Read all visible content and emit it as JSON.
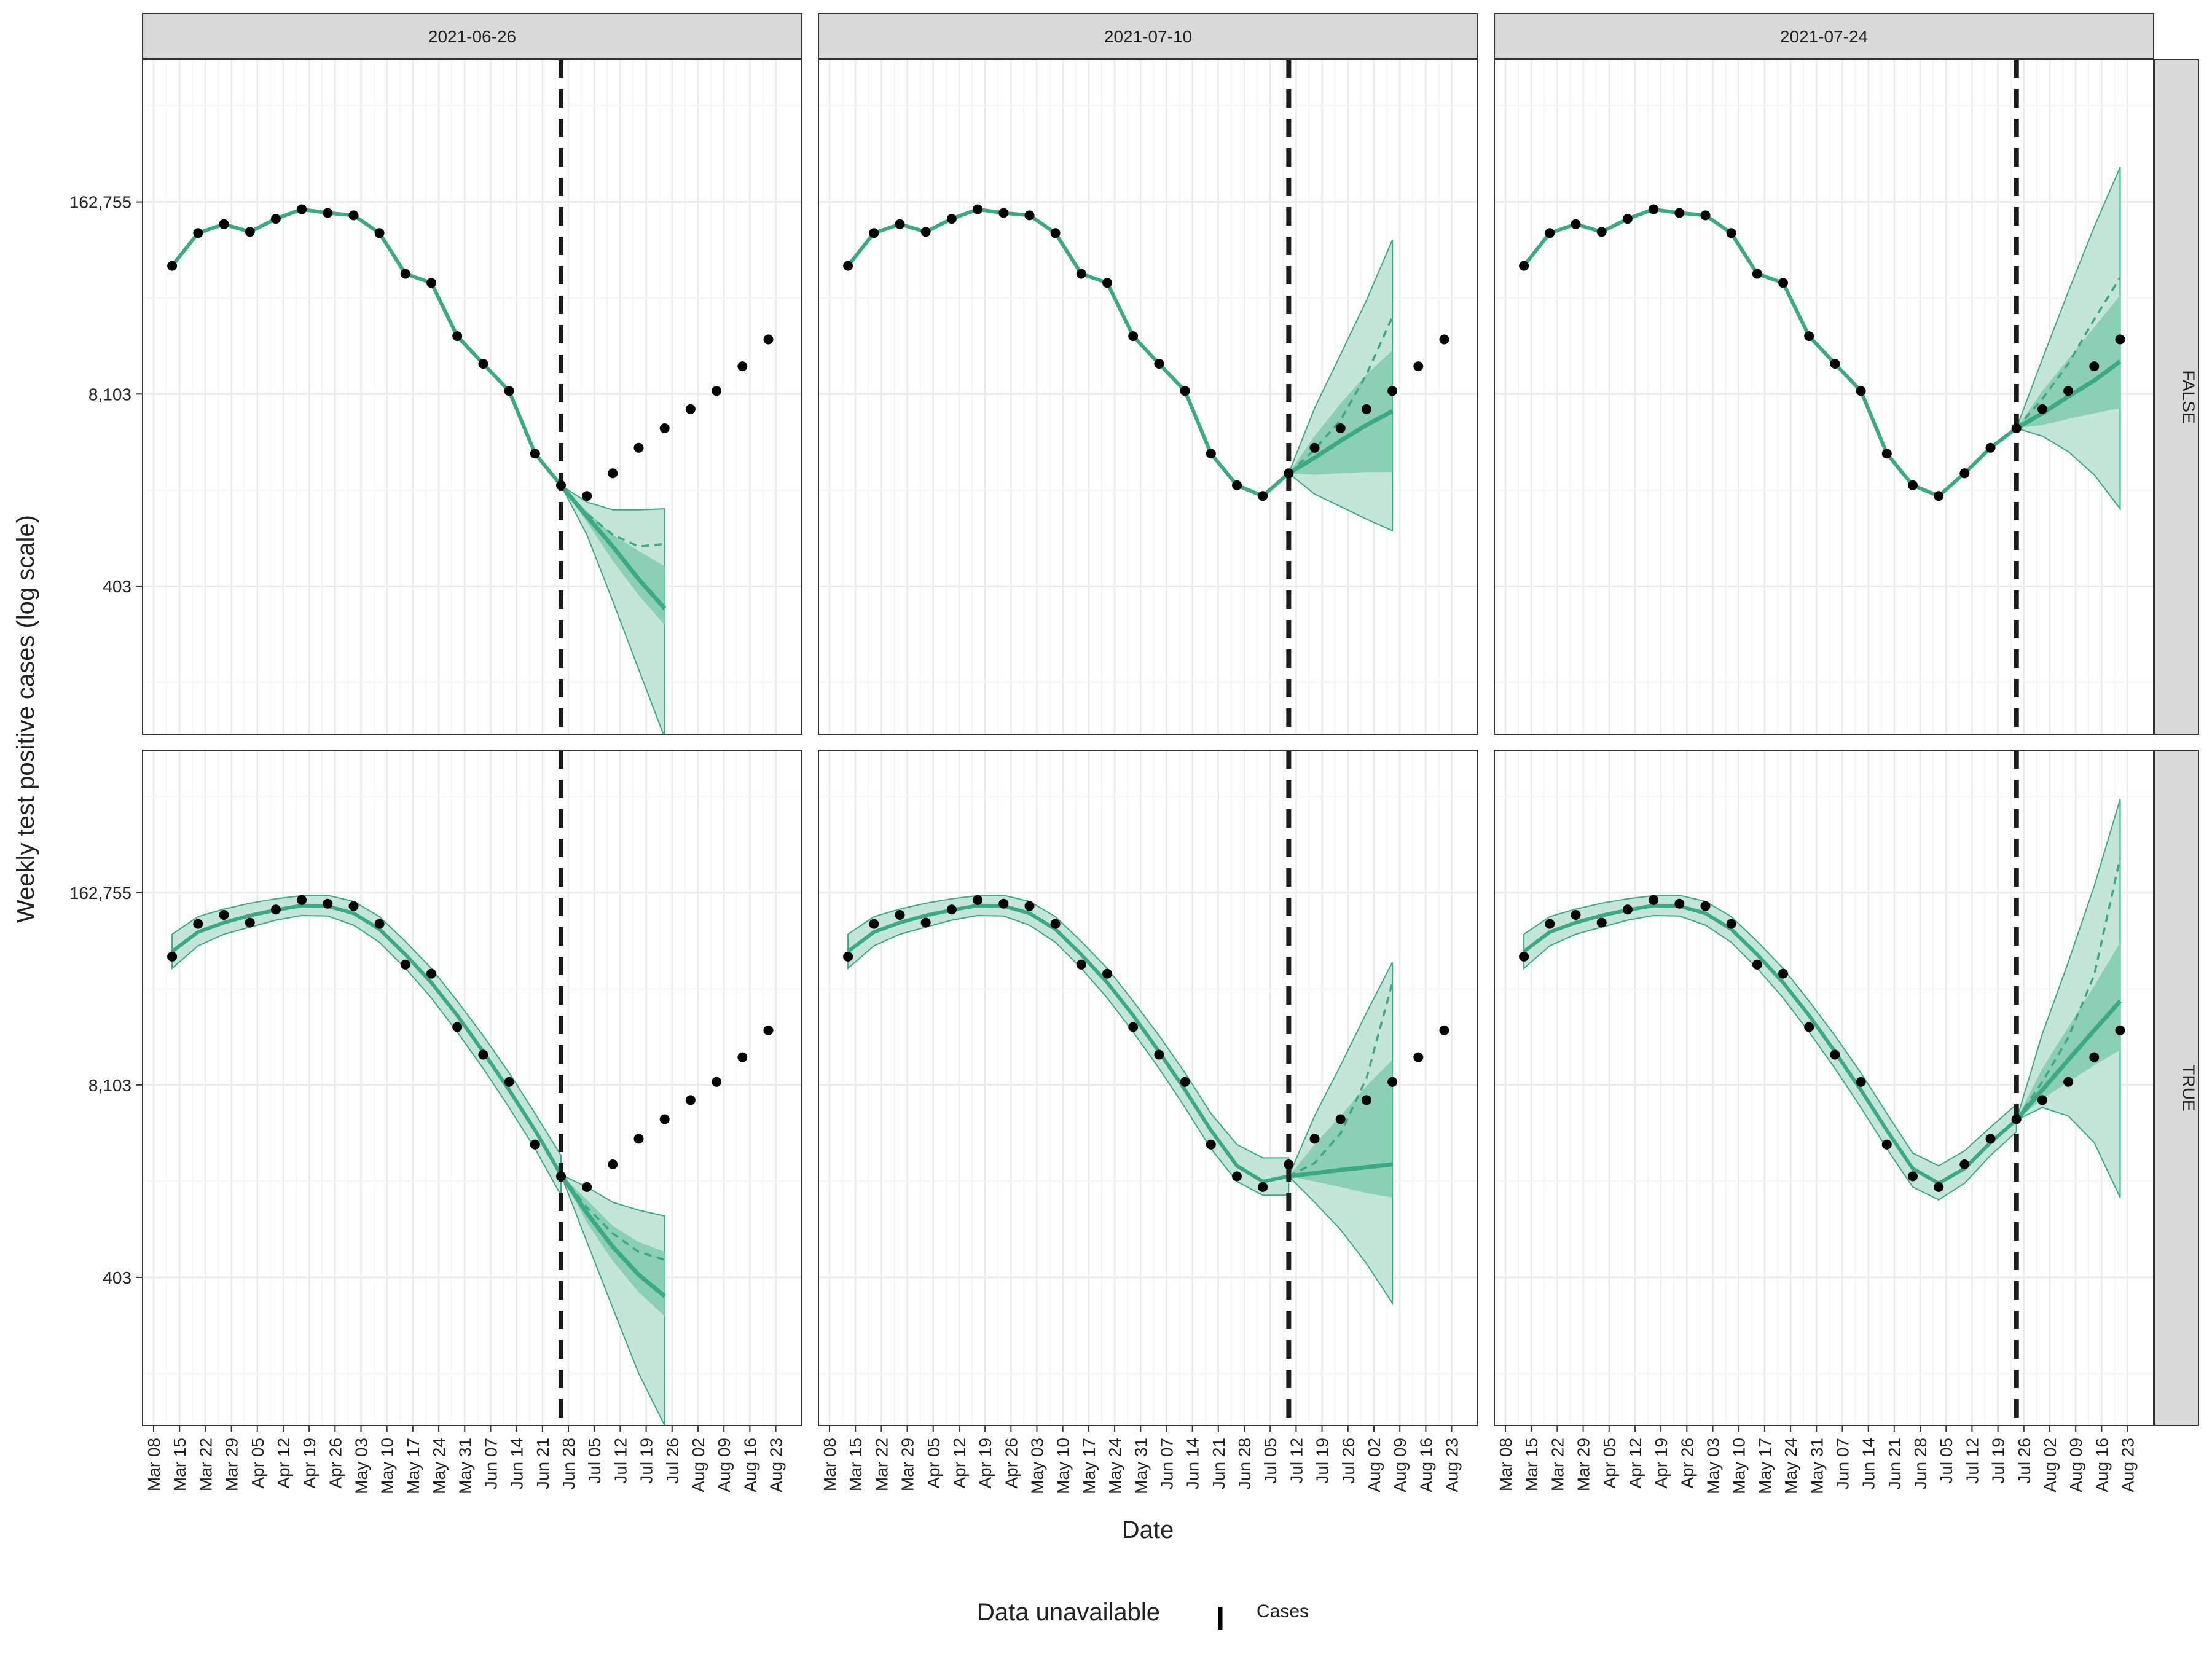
{
  "chart_data": {
    "type": "line",
    "ylabel": "Weekly test positive cases (log scale)",
    "xlabel": "Date",
    "y_scale": "log",
    "y_ticks": [
      403,
      8103,
      162755
    ],
    "y_tick_labels": [
      "403",
      "8,103",
      "162,755"
    ],
    "ylim": [
      40,
      1500000
    ],
    "x_ticks": [
      "2021-03-08",
      "2021-03-15",
      "2021-03-22",
      "2021-03-29",
      "2021-04-05",
      "2021-04-12",
      "2021-04-19",
      "2021-04-26",
      "2021-05-03",
      "2021-05-10",
      "2021-05-17",
      "2021-05-24",
      "2021-05-31",
      "2021-06-07",
      "2021-06-14",
      "2021-06-21",
      "2021-06-28",
      "2021-07-05",
      "2021-07-12",
      "2021-07-19",
      "2021-07-26",
      "2021-08-02",
      "2021-08-09",
      "2021-08-16",
      "2021-08-23"
    ],
    "x_tick_labels": [
      "Mar 08",
      "Mar 15",
      "Mar 22",
      "Mar 29",
      "Apr 05",
      "Apr 12",
      "Apr 19",
      "Apr 26",
      "May 03",
      "May 10",
      "May 17",
      "May 24",
      "May 31",
      "Jun 07",
      "Jun 14",
      "Jun 21",
      "Jun 28",
      "Jul 05",
      "Jul 12",
      "Jul 19",
      "Jul 26",
      "Aug 02",
      "Aug 09",
      "Aug 16",
      "Aug 23"
    ],
    "grid": true,
    "column_facets": [
      "2021-06-26",
      "2021-07-10",
      "2021-07-24"
    ],
    "row_facets": [
      "FALSE",
      "TRUE"
    ],
    "observed": {
      "dates": [
        "2021-03-13",
        "2021-03-20",
        "2021-03-27",
        "2021-04-03",
        "2021-04-10",
        "2021-04-17",
        "2021-04-24",
        "2021-05-01",
        "2021-05-08",
        "2021-05-15",
        "2021-05-22",
        "2021-05-29",
        "2021-06-05",
        "2021-06-12",
        "2021-06-19",
        "2021-06-26",
        "2021-07-03",
        "2021-07-10",
        "2021-07-17",
        "2021-07-24",
        "2021-07-31",
        "2021-08-07",
        "2021-08-14",
        "2021-08-21"
      ],
      "values": [
        60000,
        100000,
        115000,
        102000,
        125000,
        145000,
        137000,
        132000,
        100000,
        53000,
        46000,
        20000,
        13000,
        8500,
        3200,
        1950,
        1650,
        2350,
        3500,
        4750,
        6400,
        8500,
        12500,
        19000
      ]
    },
    "forecasts": [
      {
        "forecast_date": "2021-06-26",
        "adjusted": "FALSE",
        "fit_dates": [
          "2021-03-13",
          "2021-03-20",
          "2021-03-27",
          "2021-04-03",
          "2021-04-10",
          "2021-04-17",
          "2021-04-24",
          "2021-05-01",
          "2021-05-08",
          "2021-05-15",
          "2021-05-22",
          "2021-05-29",
          "2021-06-05",
          "2021-06-12",
          "2021-06-19",
          "2021-06-26"
        ],
        "fit_median": [
          60000,
          100000,
          115000,
          102000,
          125000,
          145000,
          137000,
          132000,
          100000,
          53000,
          46000,
          20000,
          13000,
          8500,
          3200,
          1950
        ],
        "fit_90_lower": null,
        "fit_90_upper": null,
        "forecast_dates": [
          "2021-06-26",
          "2021-07-03",
          "2021-07-10",
          "2021-07-17",
          "2021-07-24"
        ],
        "median": [
          1950,
          1200,
          750,
          450,
          285
        ],
        "mean": [
          1950,
          1250,
          900,
          750,
          780
        ],
        "q90_lower": [
          1950,
          900,
          320,
          110,
          38
        ],
        "q90_upper": [
          1950,
          1500,
          1330,
          1330,
          1350
        ],
        "q50_lower": [
          1950,
          1100,
          600,
          350,
          220
        ],
        "q50_upper": [
          1950,
          1300,
          900,
          700,
          550
        ]
      },
      {
        "forecast_date": "2021-07-10",
        "adjusted": "FALSE",
        "fit_dates": [
          "2021-03-13",
          "2021-03-20",
          "2021-03-27",
          "2021-04-03",
          "2021-04-10",
          "2021-04-17",
          "2021-04-24",
          "2021-05-01",
          "2021-05-08",
          "2021-05-15",
          "2021-05-22",
          "2021-05-29",
          "2021-06-05",
          "2021-06-12",
          "2021-06-19",
          "2021-06-26",
          "2021-07-03",
          "2021-07-10"
        ],
        "fit_median": [
          60000,
          100000,
          115000,
          102000,
          125000,
          145000,
          137000,
          132000,
          100000,
          53000,
          46000,
          20000,
          13000,
          8500,
          3200,
          1950,
          1650,
          2350
        ],
        "fit_90_lower": null,
        "fit_90_upper": null,
        "forecast_dates": [
          "2021-07-10",
          "2021-07-17",
          "2021-07-24",
          "2021-07-31",
          "2021-08-07"
        ],
        "median": [
          2350,
          3000,
          3900,
          5000,
          6200
        ],
        "mean": [
          2350,
          3400,
          5400,
          11000,
          27000
        ],
        "q90_lower": [
          2350,
          1700,
          1400,
          1150,
          960
        ],
        "q90_upper": [
          2350,
          6500,
          15000,
          35000,
          90000
        ],
        "q50_lower": [
          2350,
          2300,
          2350,
          2400,
          2400
        ],
        "q50_upper": [
          2350,
          4200,
          7000,
          11000,
          16000
        ]
      },
      {
        "forecast_date": "2021-07-24",
        "adjusted": "FALSE",
        "fit_dates": [
          "2021-03-13",
          "2021-03-20",
          "2021-03-27",
          "2021-04-03",
          "2021-04-10",
          "2021-04-17",
          "2021-04-24",
          "2021-05-01",
          "2021-05-08",
          "2021-05-15",
          "2021-05-22",
          "2021-05-29",
          "2021-06-05",
          "2021-06-12",
          "2021-06-19",
          "2021-06-26",
          "2021-07-03",
          "2021-07-10",
          "2021-07-17",
          "2021-07-24"
        ],
        "fit_median": [
          60000,
          100000,
          115000,
          102000,
          125000,
          145000,
          137000,
          132000,
          100000,
          53000,
          46000,
          20000,
          13000,
          8500,
          3200,
          1950,
          1650,
          2350,
          3500,
          4750
        ],
        "fit_90_lower": null,
        "fit_90_upper": null,
        "forecast_dates": [
          "2021-07-24",
          "2021-07-31",
          "2021-08-07",
          "2021-08-14",
          "2021-08-21"
        ],
        "median": [
          4750,
          6000,
          7800,
          10000,
          13500
        ],
        "mean": [
          4750,
          7500,
          13000,
          26000,
          50000
        ],
        "q90_lower": [
          4750,
          4200,
          3300,
          2300,
          1350
        ],
        "q90_upper": [
          4750,
          14000,
          40000,
          110000,
          280000
        ],
        "q50_lower": [
          4750,
          5000,
          5500,
          6000,
          6500
        ],
        "q50_upper": [
          4750,
          8500,
          14000,
          23000,
          38000
        ]
      },
      {
        "forecast_date": "2021-06-26",
        "adjusted": "TRUE",
        "fit_dates": [
          "2021-03-13",
          "2021-03-20",
          "2021-03-27",
          "2021-04-03",
          "2021-04-10",
          "2021-04-17",
          "2021-04-24",
          "2021-05-01",
          "2021-05-08",
          "2021-05-15",
          "2021-05-22",
          "2021-05-29",
          "2021-06-05",
          "2021-06-12",
          "2021-06-19",
          "2021-06-26"
        ],
        "fit_median": [
          65000,
          88000,
          102000,
          114000,
          124000,
          133000,
          132000,
          118000,
          92000,
          62000,
          40000,
          24000,
          13600,
          7500,
          4000,
          2000
        ],
        "fit_90_lower": [
          50000,
          71000,
          85000,
          95000,
          106000,
          114000,
          113000,
          98000,
          75000,
          50000,
          31500,
          18500,
          10500,
          5700,
          3000,
          1450
        ],
        "fit_90_upper": [
          85000,
          112000,
          126000,
          138000,
          148000,
          155000,
          156000,
          142000,
          112000,
          76000,
          50000,
          30000,
          17500,
          9800,
          5200,
          2700
        ],
        "forecast_dates": [
          "2021-06-26",
          "2021-07-03",
          "2021-07-10",
          "2021-07-17",
          "2021-07-24"
        ],
        "median": [
          2000,
          1100,
          650,
          420,
          300
        ],
        "mean": [
          2000,
          1200,
          800,
          600,
          530
        ],
        "q90_lower": [
          2000,
          700,
          250,
          90,
          40
        ],
        "q90_upper": [
          2000,
          1650,
          1300,
          1150,
          1050
        ],
        "q50_lower": [
          2000,
          950,
          520,
          320,
          220
        ],
        "q50_upper": [
          2000,
          1350,
          900,
          700,
          600
        ]
      },
      {
        "forecast_date": "2021-07-10",
        "adjusted": "TRUE",
        "fit_dates": [
          "2021-03-13",
          "2021-03-20",
          "2021-03-27",
          "2021-04-03",
          "2021-04-10",
          "2021-04-17",
          "2021-04-24",
          "2021-05-01",
          "2021-05-08",
          "2021-05-15",
          "2021-05-22",
          "2021-05-29",
          "2021-06-05",
          "2021-06-12",
          "2021-06-19",
          "2021-06-26",
          "2021-07-03",
          "2021-07-10"
        ],
        "fit_median": [
          65000,
          88000,
          102000,
          114000,
          124000,
          133000,
          132000,
          118000,
          92000,
          62000,
          40000,
          24000,
          13600,
          7500,
          4000,
          2300,
          1800,
          1950
        ],
        "fit_90_lower": [
          50000,
          71000,
          85000,
          95000,
          106000,
          114000,
          113000,
          98000,
          75000,
          50000,
          31500,
          18500,
          10500,
          5700,
          3000,
          1800,
          1450,
          1450
        ],
        "fit_90_upper": [
          85000,
          112000,
          126000,
          138000,
          148000,
          155000,
          156000,
          142000,
          112000,
          76000,
          50000,
          30000,
          17500,
          9800,
          5200,
          3200,
          2600,
          2600
        ],
        "forecast_dates": [
          "2021-07-10",
          "2021-07-17",
          "2021-07-24",
          "2021-07-31",
          "2021-08-07"
        ],
        "median": [
          1950,
          2050,
          2150,
          2250,
          2350
        ],
        "mean": [
          1950,
          2400,
          3800,
          9000,
          40000
        ],
        "q90_lower": [
          1950,
          1300,
          850,
          500,
          270
        ],
        "q90_upper": [
          1950,
          5000,
          11000,
          25000,
          55000
        ],
        "q50_lower": [
          1950,
          1800,
          1650,
          1500,
          1400
        ],
        "q50_upper": [
          1950,
          3200,
          5000,
          8000,
          12000
        ]
      },
      {
        "forecast_date": "2021-07-24",
        "adjusted": "TRUE",
        "fit_dates": [
          "2021-03-13",
          "2021-03-20",
          "2021-03-27",
          "2021-04-03",
          "2021-04-10",
          "2021-04-17",
          "2021-04-24",
          "2021-05-01",
          "2021-05-08",
          "2021-05-15",
          "2021-05-22",
          "2021-05-29",
          "2021-06-05",
          "2021-06-12",
          "2021-06-19",
          "2021-06-26",
          "2021-07-03",
          "2021-07-10",
          "2021-07-17",
          "2021-07-24"
        ],
        "fit_median": [
          65000,
          88000,
          102000,
          114000,
          124000,
          133000,
          132000,
          118000,
          92000,
          62000,
          40000,
          24000,
          13600,
          7500,
          4000,
          2200,
          1750,
          2200,
          3300,
          4700
        ],
        "fit_90_lower": [
          50000,
          71000,
          85000,
          95000,
          106000,
          114000,
          113000,
          98000,
          75000,
          50000,
          31500,
          18500,
          10500,
          5700,
          3000,
          1650,
          1350,
          1750,
          2700,
          3900
        ],
        "fit_90_upper": [
          85000,
          112000,
          126000,
          138000,
          148000,
          155000,
          156000,
          142000,
          112000,
          76000,
          50000,
          30000,
          17500,
          9800,
          5200,
          2800,
          2300,
          2900,
          4200,
          6000
        ],
        "forecast_dates": [
          "2021-07-24",
          "2021-07-31",
          "2021-08-07",
          "2021-08-14",
          "2021-08-21"
        ],
        "median": [
          4700,
          7500,
          12000,
          19000,
          30000
        ],
        "mean": [
          4700,
          8500,
          17000,
          45000,
          280000
        ],
        "q90_lower": [
          4700,
          5700,
          5000,
          3300,
          1400
        ],
        "q90_upper": [
          4700,
          18000,
          55000,
          180000,
          700000
        ],
        "q50_lower": [
          4700,
          6500,
          8500,
          11000,
          14000
        ],
        "q50_upper": [
          4700,
          10500,
          20000,
          38000,
          75000
        ]
      }
    ],
    "legend": {
      "title": "Data unavailable",
      "entries": [
        "Cases"
      ]
    },
    "colors": {
      "line": "#3aaa86",
      "band_outer": "#c3e6d8",
      "band_inner": "#8bcfb4",
      "points": "#000000",
      "vline": "#1a1a1a",
      "strip_bg": "#d9d9d9",
      "grid": "#ebebeb"
    }
  }
}
